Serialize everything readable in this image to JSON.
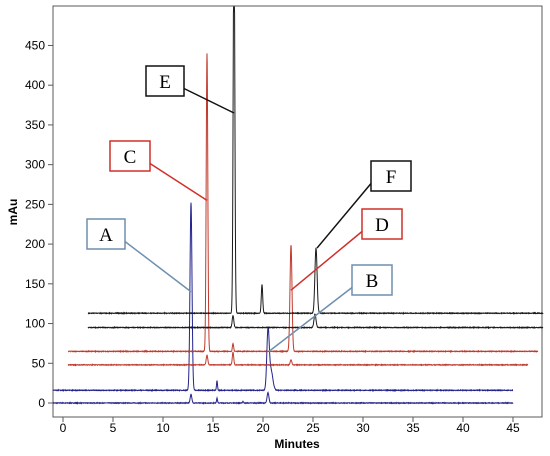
{
  "chart_data": {
    "type": "line",
    "title": "",
    "xlabel": "Minutes",
    "ylabel": "mAu",
    "xlim": [
      -1,
      48
    ],
    "ylim": [
      -8,
      495
    ],
    "x_ticks": [
      0,
      5,
      10,
      15,
      20,
      25,
      30,
      35,
      40,
      45
    ],
    "y_ticks": [
      0,
      50,
      100,
      150,
      200,
      250,
      300,
      350,
      400,
      450
    ],
    "grid": false,
    "legend": "none",
    "series": [
      {
        "color": "#22228c",
        "baseline": 0,
        "x_start": -1,
        "x_end": 45,
        "peaks": [
          [
            12.8,
            11,
            0.08
          ],
          [
            15.4,
            6,
            0.05
          ],
          [
            18.0,
            2,
            0.05
          ],
          [
            20.5,
            13,
            0.09
          ]
        ]
      },
      {
        "color": "#22228c",
        "baseline": 16,
        "x_start": -1,
        "x_end": 45,
        "peaks": [
          [
            12.8,
            236,
            0.1
          ],
          [
            15.4,
            12,
            0.05
          ],
          [
            20.5,
            73,
            0.12
          ],
          [
            20.8,
            25,
            0.18
          ]
        ]
      },
      {
        "color": "#c0392b",
        "baseline": 48,
        "x_start": 0.5,
        "x_end": 46.5,
        "peaks": [
          [
            14.4,
            12,
            0.08
          ],
          [
            17.0,
            16,
            0.07
          ],
          [
            22.8,
            6,
            0.08
          ]
        ]
      },
      {
        "color": "#c0392b",
        "baseline": 65,
        "x_start": 0.5,
        "x_end": 47.5,
        "peaks": [
          [
            14.4,
            375,
            0.08
          ],
          [
            17.0,
            10,
            0.06
          ],
          [
            22.8,
            134,
            0.1
          ]
        ]
      },
      {
        "color": "#1a1a1a",
        "baseline": 95,
        "x_start": 2.5,
        "x_end": 48,
        "peaks": [
          [
            17.0,
            15,
            0.08
          ],
          [
            25.2,
            17,
            0.1
          ]
        ]
      },
      {
        "color": "#1a1a1a",
        "baseline": 113,
        "x_start": 2.5,
        "x_end": 48,
        "peaks": [
          [
            17.1,
            500,
            0.08
          ],
          [
            19.9,
            36,
            0.07
          ],
          [
            25.3,
            82,
            0.11
          ]
        ]
      }
    ],
    "annotations": [
      {
        "label": "A",
        "color": "#6f8fae",
        "point": [
          12.8,
          140
        ]
      },
      {
        "label": "B",
        "color": "#6f8fae",
        "point": [
          20.6,
          65
        ]
      },
      {
        "label": "C",
        "color": "#d0302a",
        "point": [
          14.4,
          255
        ]
      },
      {
        "label": "D",
        "color": "#d0302a",
        "point": [
          22.8,
          142
        ]
      },
      {
        "label": "E",
        "color": "#111111",
        "point": [
          17.1,
          365
        ]
      },
      {
        "label": "F",
        "color": "#111111",
        "point": [
          25.4,
          195
        ]
      }
    ]
  }
}
